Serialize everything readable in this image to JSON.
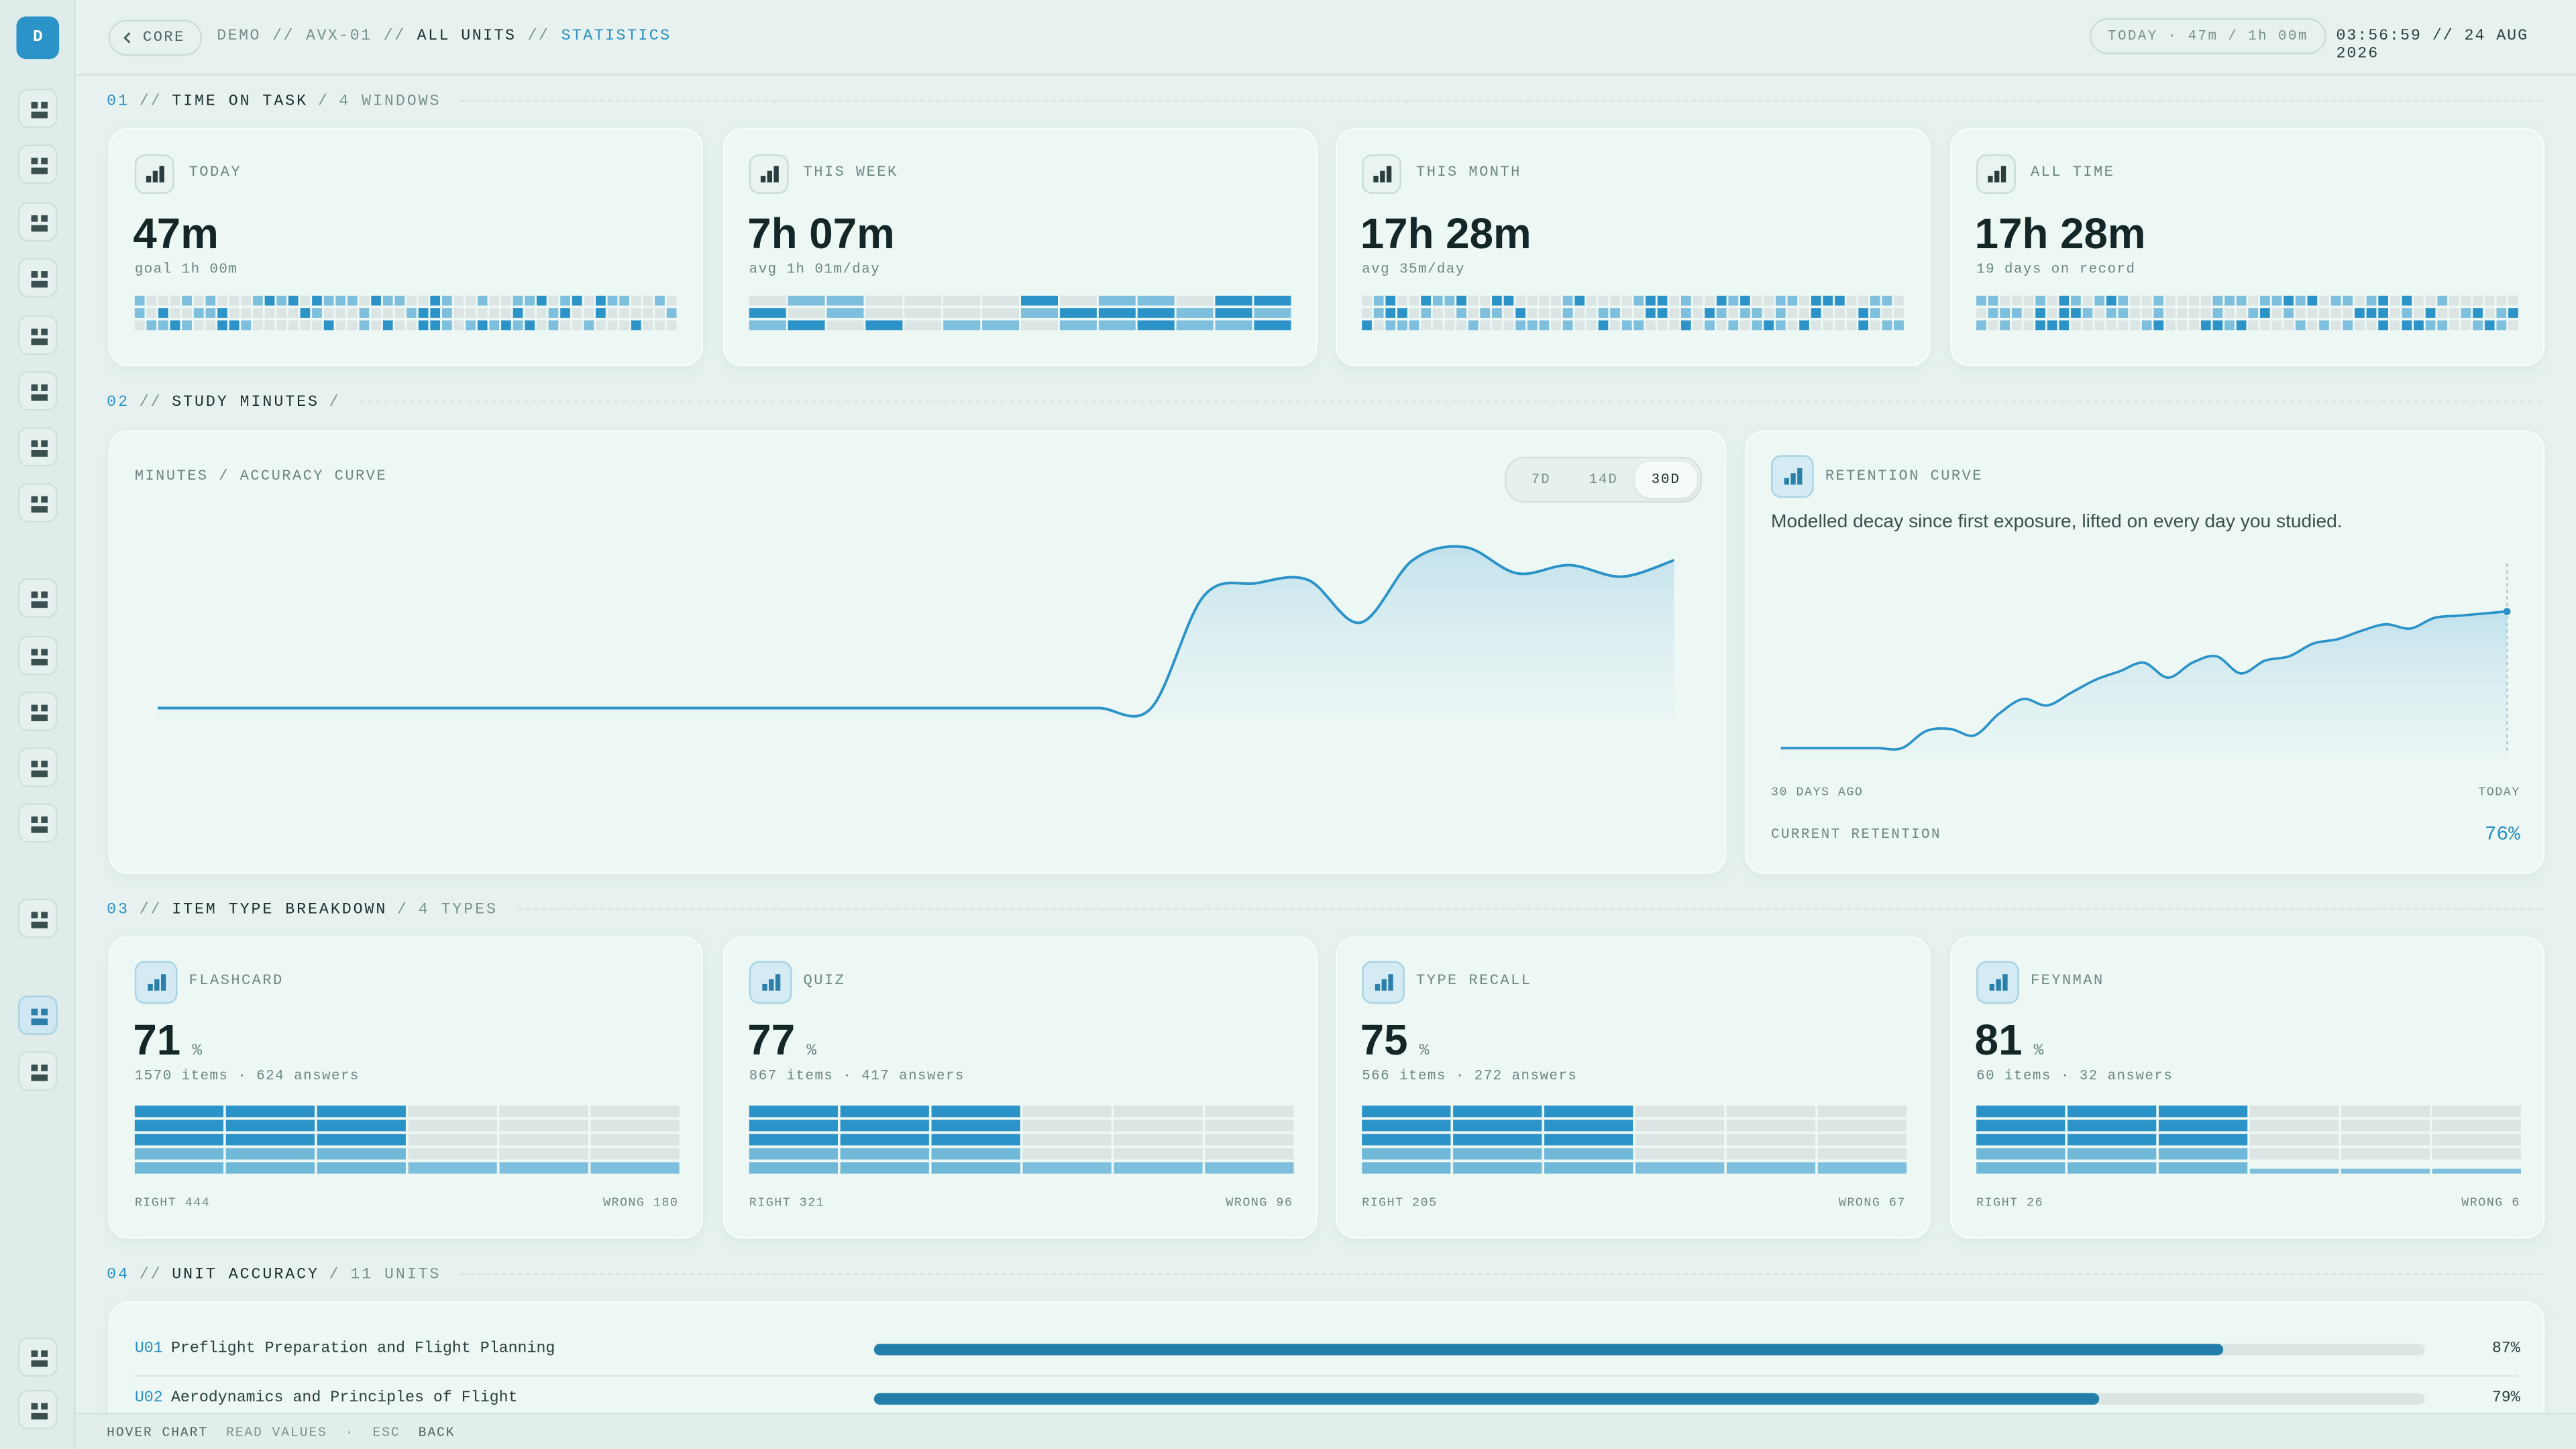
{
  "app": {
    "logo": "D"
  },
  "breadcrumb": {
    "back": "CORE",
    "separator": "//",
    "path": [
      "DEMO",
      "AVX-01",
      "ALL UNITS",
      "STATISTICS"
    ]
  },
  "header": {
    "today": "TODAY · 47m / 1h 00m",
    "clock": "03:56:59 // 24 AUG 2026"
  },
  "section_separators": {
    "major": "//",
    "minor": "/"
  },
  "sections": [
    {
      "number": "01",
      "title": "TIME ON TASK",
      "meta": "4 WINDOWS"
    },
    {
      "number": "02",
      "title": "STUDY MINUTES"
    },
    {
      "number": "03",
      "title": "ITEM TYPE BREAKDOWN",
      "meta": "4 TYPES"
    },
    {
      "number": "04",
      "title": "UNIT ACCURACY",
      "meta": "11 UNITS"
    }
  ],
  "time_cards": [
    {
      "label": "TODAY",
      "value": "47m",
      "sub": "goal 1h 00m"
    },
    {
      "label": "THIS WEEK",
      "value": "7h 07m",
      "sub": "avg 1h 01m/day"
    },
    {
      "label": "THIS MONTH",
      "value": "17h 28m",
      "sub": "avg 35m/day"
    },
    {
      "label": "ALL TIME",
      "value": "17h 28m",
      "sub": "19 days on record"
    }
  ],
  "study_chart": {
    "type": "line",
    "title": "MINUTES / ACCURACY CURVE",
    "tabs": [
      "7D",
      "14D",
      "30D"
    ],
    "active_tab": 2,
    "color": "#2b93c7",
    "ylim": [
      0,
      130
    ],
    "values": [
      0,
      0,
      0,
      0,
      0,
      0,
      0,
      0,
      0,
      0,
      0,
      0,
      0,
      0,
      0,
      0,
      0,
      0,
      0,
      0,
      68,
      76,
      78,
      52,
      90,
      98,
      82,
      87,
      80,
      90
    ]
  },
  "retention": {
    "type": "line",
    "title": "RETENTION CURVE",
    "description": "Modelled decay since first exposure, lifted on every day you studied.",
    "color": "#2b93c7",
    "ylim": [
      0,
      100
    ],
    "values": [
      12,
      12,
      12,
      12,
      12,
      12,
      20,
      21,
      18,
      28,
      35,
      32,
      38,
      44,
      48,
      52,
      45,
      52,
      55,
      47,
      53,
      55,
      61,
      63,
      67,
      70,
      68,
      73,
      74,
      75,
      76
    ],
    "x_labels": [
      "30 DAYS AGO",
      "TODAY"
    ],
    "current_label": "CURRENT RETENTION",
    "current_value_label": "76%"
  },
  "item_types": [
    {
      "name": "FLASHCARD",
      "accuracy": 71,
      "unit": "%",
      "detail": "1570 items · 624 answers",
      "right": "RIGHT 444",
      "wrong": "WRONG 180"
    },
    {
      "name": "QUIZ",
      "accuracy": 77,
      "unit": "%",
      "detail": "867 items · 417 answers",
      "right": "RIGHT 321",
      "wrong": "WRONG 96"
    },
    {
      "name": "TYPE RECALL",
      "accuracy": 75,
      "unit": "%",
      "detail": "566 items · 272 answers",
      "right": "RIGHT 205",
      "wrong": "WRONG 67"
    },
    {
      "name": "FEYNMAN",
      "accuracy": 81,
      "unit": "%",
      "detail": "60 items · 32 answers",
      "right": "RIGHT 26",
      "wrong": "WRONG 6"
    }
  ],
  "units": {
    "rows": [
      {
        "code": "U01",
        "name": "Preflight Preparation and Flight Planning",
        "value": 87,
        "value_label": "87%"
      },
      {
        "code": "U02",
        "name": "Aerodynamics and Principles of Flight",
        "value": 79,
        "value_label": "79%"
      }
    ]
  },
  "footer": {
    "hints": [
      "HOVER CHART",
      "READ VALUES",
      "·",
      "ESC",
      "BACK"
    ]
  }
}
